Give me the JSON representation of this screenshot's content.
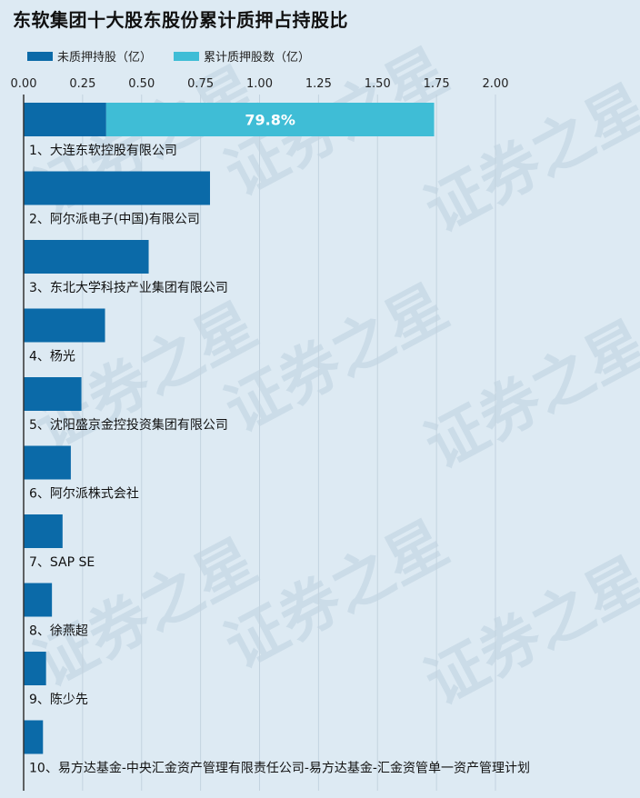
{
  "title": "东软集团十大股东股份累计质押占持股比",
  "colors": {
    "unpledged": "#0b6aa8",
    "pledged": "#3fbdd6",
    "grid": "#c3d3df",
    "axis": "#333333"
  },
  "watermark_text": "证券之星",
  "chart_data": {
    "type": "bar",
    "orientation": "horizontal",
    "stacked": true,
    "title": "东软集团十大股东股份累计质押占持股比",
    "xlim": [
      0,
      2.0
    ],
    "x_ticks": [
      "0.00",
      "0.25",
      "0.50",
      "0.75",
      "1.00",
      "1.25",
      "1.50",
      "1.75",
      "2.00"
    ],
    "x_tick_values": [
      0,
      0.25,
      0.5,
      0.75,
      1.0,
      1.25,
      1.5,
      1.75,
      2.0
    ],
    "grid": true,
    "legend": "top-left",
    "categories": [
      "1、大连东软控股有限公司",
      "2、阿尔派电子(中国)有限公司",
      "3、东北大学科技产业集团有限公司",
      "4、杨光",
      "5、沈阳盛京金控投资集团有限公司",
      "6、阿尔派株式会社",
      "7、SAP SE",
      "8、徐燕超",
      "9、陈少先",
      "10、易方达基金-中央汇金资产管理有限责任公司-易方达基金-汇金资管单一资产管理计划"
    ],
    "series": [
      {
        "name": "未质押持股（亿）",
        "values": [
          0.35,
          0.79,
          0.53,
          0.345,
          0.245,
          0.2,
          0.165,
          0.12,
          0.095,
          0.082
        ]
      },
      {
        "name": "累计质押股数（亿）",
        "values": [
          1.39,
          0,
          0,
          0,
          0,
          0,
          0,
          0,
          0,
          0
        ]
      }
    ],
    "annotations": [
      {
        "category_index": 0,
        "text": "79.8%"
      }
    ]
  }
}
